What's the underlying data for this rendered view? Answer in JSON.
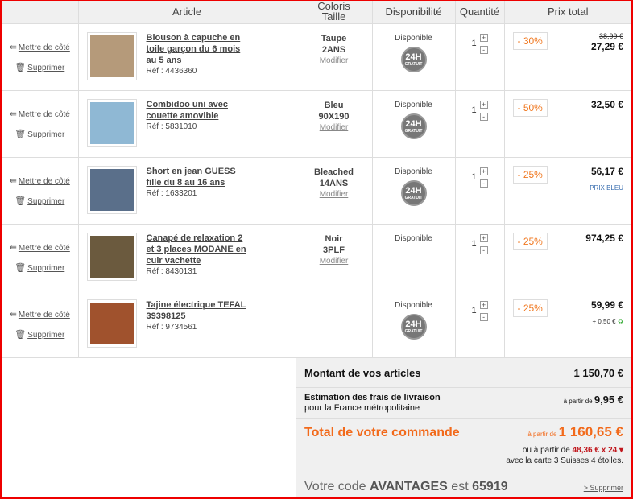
{
  "header": {
    "article": "Article",
    "coloris": "Coloris",
    "taille": "Taille",
    "disponibilite": "Disponibilité",
    "quantite": "Quantité",
    "prix_total": "Prix total"
  },
  "actions": {
    "set_aside": "Mettre de côté",
    "delete": "Supprimer",
    "modify": "Modifier",
    "plus": "+",
    "minus": "-",
    "badge": "24H",
    "badge_sub": "GRATUIT"
  },
  "items": [
    {
      "title": "Blouson à capuche en toile garçon du 6 mois au 5 ans",
      "ref": "Réf : 4436360",
      "color": "Taupe",
      "size": "2ANS",
      "availability": "Disponible",
      "express": true,
      "qty": "1",
      "discount": "- 30%",
      "old_price": "38,99 €",
      "price": "27,29 €",
      "thumb_color": "#b59a7a"
    },
    {
      "title": "Combidoo uni avec couette amovible",
      "ref": "Réf : 5831010",
      "color": "Bleu",
      "size": "90X190",
      "availability": "Disponible",
      "express": true,
      "qty": "1",
      "discount": "- 50%",
      "price": "32,50 €",
      "thumb_color": "#8fb8d4"
    },
    {
      "title": "Short en jean GUESS fille du 8 au 16 ans",
      "ref": "Réf : 1633201",
      "color": "Bleached",
      "size": "14ANS",
      "availability": "Disponible",
      "express": true,
      "qty": "1",
      "discount": "- 25%",
      "price": "56,17 €",
      "note": "PRIX BLEU",
      "thumb_color": "#5a6f8a"
    },
    {
      "title": "Canapé de relaxation 2 et 3 places MODANE en cuir vachette",
      "ref": "Réf : 8430131",
      "color": "Noir",
      "size": "3PLF",
      "availability": "Disponible",
      "express": false,
      "qty": "1",
      "discount": "- 25%",
      "price": "974,25 €",
      "thumb_color": "#6b5a3e"
    },
    {
      "title": "Tajine électrique TEFAL 39398125",
      "ref": "Réf : 9734561",
      "availability": "Disponible",
      "express": true,
      "qty": "1",
      "discount": "- 25%",
      "price": "59,99 €",
      "eco": "+ 0,50 €",
      "thumb_color": "#a0522d"
    }
  ],
  "summary": {
    "articles_label": "Montant de vos articles",
    "articles_value": "1 150,70 €",
    "shipping_label": "Estimation des frais de livraison",
    "shipping_sub": "pour la France métropolitaine",
    "from": "à partir de",
    "shipping_value": "9,95 €",
    "total_label": "Total de votre commande",
    "total_value": "1 160,65 €",
    "credit_prefix": "ou à partir de",
    "credit_value": "48,36 € x 24 ▾",
    "credit_sub": "avec la carte 3 Suisses 4 étoiles.",
    "code_prefix": "Votre code",
    "code_word": "AVANTAGES",
    "code_mid": "est",
    "code": "65919",
    "code_delete": "> Supprimer"
  },
  "colors": {
    "accent": "#f26a1b",
    "border": "#e00000",
    "credit": "#c0171d"
  }
}
